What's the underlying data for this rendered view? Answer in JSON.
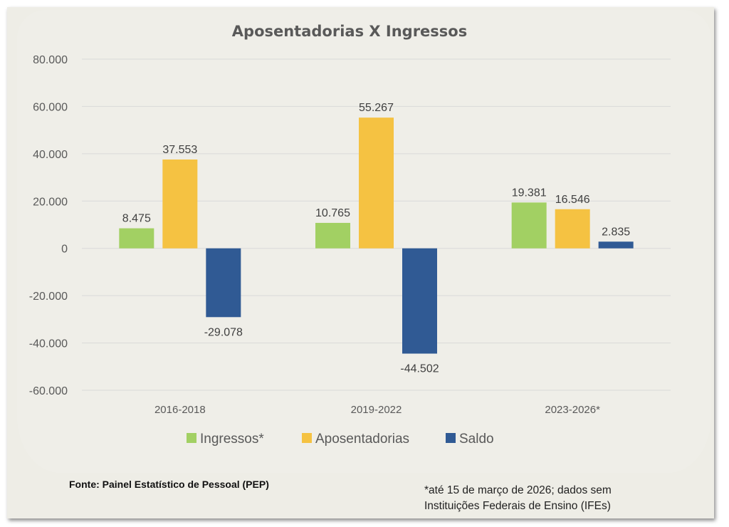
{
  "chart_data": {
    "type": "bar",
    "title": "Aposentadorias X Ingressos",
    "categories": [
      "2016-2018",
      "2019-2022",
      "2023-2026*"
    ],
    "series": [
      {
        "name": "Ingressos*",
        "color": "#a2d063",
        "values": [
          8475,
          10765,
          19381
        ],
        "labels": [
          "8.475",
          "10.765",
          "19.381"
        ]
      },
      {
        "name": "Aposentadorias",
        "color": "#f5c242",
        "values": [
          37553,
          55267,
          16546
        ],
        "labels": [
          "37.553",
          "55.267",
          "16.546"
        ]
      },
      {
        "name": "Saldo",
        "color": "#305a94",
        "values": [
          -29078,
          -44502,
          2835
        ],
        "labels": [
          "-29.078",
          "-44.502",
          "2.835"
        ]
      }
    ],
    "ylim": [
      -60000,
      80000
    ],
    "yticks": [
      80000,
      60000,
      40000,
      20000,
      0,
      -20000,
      -40000,
      -60000
    ],
    "ytick_labels": [
      "80.000",
      "60.000",
      "40.000",
      "20.000",
      "0",
      "-20.000",
      "-40.000",
      "-60.000"
    ],
    "xlabel": "",
    "ylabel": "",
    "grid": true,
    "legend_position": "bottom"
  },
  "footer": {
    "source": "Fonte: Painel Estatístico de Pessoal (PEP)",
    "note_line1": "*até 15 de março de 2026; dados sem",
    "note_line2": "Instituições Federais de Ensino (IFEs)"
  }
}
